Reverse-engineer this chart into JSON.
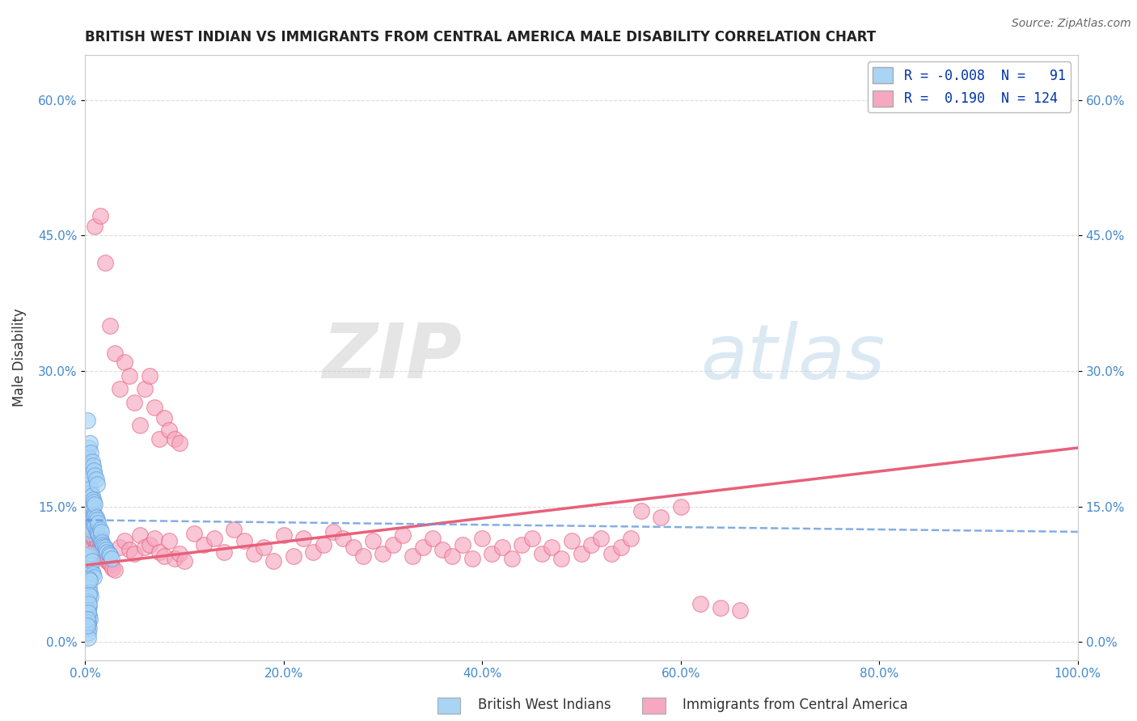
{
  "title": "BRITISH WEST INDIAN VS IMMIGRANTS FROM CENTRAL AMERICA MALE DISABILITY CORRELATION CHART",
  "source": "Source: ZipAtlas.com",
  "ylabel": "Male Disability",
  "xlim": [
    0.0,
    1.0
  ],
  "ylim": [
    -0.02,
    0.65
  ],
  "xticks": [
    0.0,
    0.2,
    0.4,
    0.6,
    0.8,
    1.0
  ],
  "xticklabels": [
    "0.0%",
    "20.0%",
    "40.0%",
    "60.0%",
    "80.0%",
    "100.0%"
  ],
  "yticks": [
    0.0,
    0.15,
    0.3,
    0.45,
    0.6
  ],
  "yticklabels": [
    "0.0%",
    "15.0%",
    "30.0%",
    "45.0%",
    "60.0%"
  ],
  "r1": -0.008,
  "n1": 91,
  "r2": 0.19,
  "n2": 124,
  "color_blue": "#A8D4F5",
  "color_pink": "#F5A8C0",
  "color_blue_line": "#6699DD",
  "color_pink_line": "#E8607A",
  "color_grid": "#BBBBBB",
  "watermark_zip": "ZIP",
  "watermark_atlas": "atlas",
  "legend_label1": "British West Indians",
  "legend_label2": "Immigrants from Central America",
  "blue_x": [
    0.002,
    0.003,
    0.003,
    0.004,
    0.004,
    0.004,
    0.005,
    0.005,
    0.005,
    0.005,
    0.005,
    0.005,
    0.006,
    0.006,
    0.006,
    0.006,
    0.006,
    0.007,
    0.007,
    0.007,
    0.007,
    0.008,
    0.008,
    0.008,
    0.009,
    0.009,
    0.009,
    0.01,
    0.01,
    0.01,
    0.011,
    0.011,
    0.012,
    0.012,
    0.013,
    0.013,
    0.014,
    0.015,
    0.015,
    0.016,
    0.016,
    0.017,
    0.018,
    0.019,
    0.02,
    0.021,
    0.022,
    0.024,
    0.025,
    0.027,
    0.003,
    0.004,
    0.005,
    0.006,
    0.007,
    0.008,
    0.009,
    0.01,
    0.011,
    0.012,
    0.003,
    0.004,
    0.005,
    0.005,
    0.006,
    0.006,
    0.007,
    0.007,
    0.008,
    0.009,
    0.003,
    0.004,
    0.004,
    0.005,
    0.005,
    0.006,
    0.003,
    0.004,
    0.004,
    0.003,
    0.004,
    0.004,
    0.005,
    0.003,
    0.003,
    0.004,
    0.003,
    0.003,
    0.003,
    0.002,
    0.002
  ],
  "blue_y": [
    0.245,
    0.175,
    0.195,
    0.155,
    0.165,
    0.185,
    0.135,
    0.145,
    0.155,
    0.165,
    0.12,
    0.128,
    0.14,
    0.15,
    0.16,
    0.17,
    0.125,
    0.142,
    0.152,
    0.162,
    0.135,
    0.138,
    0.148,
    0.158,
    0.13,
    0.142,
    0.155,
    0.128,
    0.14,
    0.152,
    0.125,
    0.138,
    0.122,
    0.135,
    0.12,
    0.132,
    0.118,
    0.115,
    0.125,
    0.112,
    0.122,
    0.11,
    0.108,
    0.106,
    0.105,
    0.102,
    0.1,
    0.098,
    0.096,
    0.092,
    0.205,
    0.215,
    0.22,
    0.21,
    0.2,
    0.195,
    0.19,
    0.185,
    0.18,
    0.175,
    0.092,
    0.088,
    0.082,
    0.095,
    0.085,
    0.098,
    0.078,
    0.09,
    0.075,
    0.072,
    0.065,
    0.06,
    0.07,
    0.055,
    0.068,
    0.05,
    0.045,
    0.04,
    0.052,
    0.035,
    0.03,
    0.042,
    0.025,
    0.02,
    0.032,
    0.015,
    0.01,
    0.022,
    0.005,
    0.025,
    0.018
  ],
  "pink_x": [
    0.002,
    0.003,
    0.003,
    0.004,
    0.004,
    0.004,
    0.005,
    0.005,
    0.005,
    0.005,
    0.005,
    0.006,
    0.006,
    0.006,
    0.006,
    0.007,
    0.007,
    0.007,
    0.008,
    0.008,
    0.008,
    0.009,
    0.009,
    0.01,
    0.01,
    0.011,
    0.012,
    0.012,
    0.013,
    0.014,
    0.015,
    0.016,
    0.017,
    0.018,
    0.019,
    0.02,
    0.022,
    0.024,
    0.026,
    0.028,
    0.03,
    0.035,
    0.04,
    0.045,
    0.05,
    0.055,
    0.06,
    0.065,
    0.07,
    0.075,
    0.08,
    0.085,
    0.09,
    0.095,
    0.1,
    0.11,
    0.12,
    0.13,
    0.14,
    0.15,
    0.16,
    0.17,
    0.18,
    0.19,
    0.2,
    0.21,
    0.22,
    0.23,
    0.24,
    0.25,
    0.26,
    0.27,
    0.28,
    0.29,
    0.3,
    0.31,
    0.32,
    0.33,
    0.34,
    0.35,
    0.36,
    0.37,
    0.38,
    0.39,
    0.4,
    0.41,
    0.42,
    0.43,
    0.44,
    0.45,
    0.46,
    0.47,
    0.48,
    0.49,
    0.5,
    0.51,
    0.52,
    0.53,
    0.54,
    0.55,
    0.025,
    0.03,
    0.035,
    0.04,
    0.045,
    0.05,
    0.055,
    0.06,
    0.065,
    0.07,
    0.075,
    0.08,
    0.085,
    0.09,
    0.095,
    0.01,
    0.015,
    0.02,
    0.56,
    0.58,
    0.6,
    0.62,
    0.64,
    0.66
  ],
  "pink_y": [
    0.148,
    0.142,
    0.155,
    0.138,
    0.148,
    0.16,
    0.132,
    0.142,
    0.152,
    0.125,
    0.165,
    0.128,
    0.14,
    0.118,
    0.155,
    0.122,
    0.135,
    0.115,
    0.118,
    0.13,
    0.11,
    0.115,
    0.125,
    0.112,
    0.12,
    0.108,
    0.115,
    0.105,
    0.11,
    0.102,
    0.108,
    0.105,
    0.1,
    0.098,
    0.095,
    0.092,
    0.09,
    0.088,
    0.085,
    0.082,
    0.08,
    0.105,
    0.112,
    0.102,
    0.098,
    0.118,
    0.105,
    0.108,
    0.115,
    0.1,
    0.095,
    0.112,
    0.092,
    0.098,
    0.09,
    0.12,
    0.108,
    0.115,
    0.1,
    0.125,
    0.112,
    0.098,
    0.105,
    0.09,
    0.118,
    0.095,
    0.115,
    0.1,
    0.108,
    0.122,
    0.115,
    0.105,
    0.095,
    0.112,
    0.098,
    0.108,
    0.118,
    0.095,
    0.105,
    0.115,
    0.102,
    0.095,
    0.108,
    0.092,
    0.115,
    0.098,
    0.105,
    0.092,
    0.108,
    0.115,
    0.098,
    0.105,
    0.092,
    0.112,
    0.098,
    0.108,
    0.115,
    0.098,
    0.105,
    0.115,
    0.35,
    0.32,
    0.28,
    0.31,
    0.295,
    0.265,
    0.24,
    0.28,
    0.295,
    0.26,
    0.225,
    0.248,
    0.235,
    0.225,
    0.22,
    0.46,
    0.472,
    0.42,
    0.145,
    0.138,
    0.15,
    0.042,
    0.038,
    0.035
  ]
}
